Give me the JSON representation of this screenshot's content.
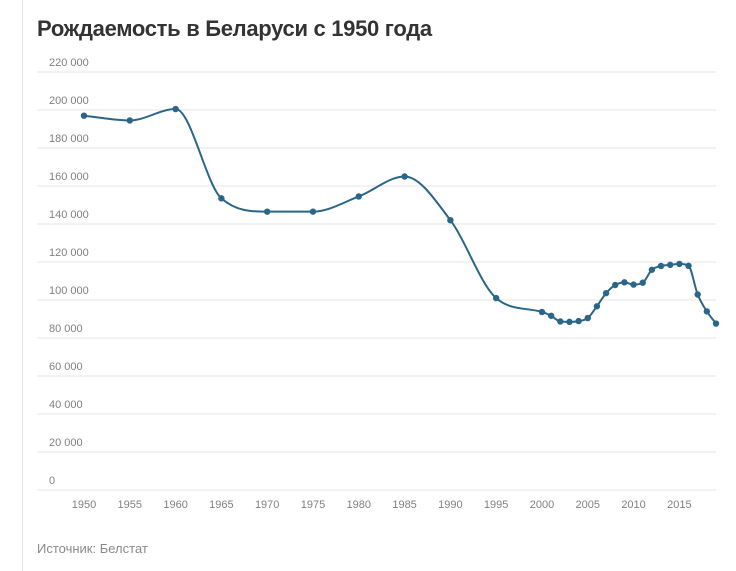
{
  "header": {
    "title": "Рождаемость в Беларуси с 1950 года"
  },
  "footer": {
    "source": "Источник: Белстат"
  },
  "chart_data": {
    "type": "line",
    "title": "Рождаемость в Беларуси с 1950 года",
    "xlabel": "",
    "ylabel": "",
    "xlim": [
      1950,
      2019
    ],
    "ylim": [
      0,
      220000
    ],
    "grid": true,
    "legend": "none",
    "line_color": "#2a6688",
    "grid_color": "#e6e6e6",
    "x_ticks": [
      1950,
      1955,
      1960,
      1965,
      1970,
      1975,
      1980,
      1985,
      1990,
      1995,
      2000,
      2005,
      2010,
      2015
    ],
    "y_ticks": [
      0,
      20000,
      40000,
      60000,
      80000,
      100000,
      120000,
      140000,
      160000,
      180000,
      200000,
      220000
    ],
    "x_tick_labels": [
      "1950",
      "1955",
      "1960",
      "1965",
      "1970",
      "1975",
      "1980",
      "1985",
      "1990",
      "1995",
      "2000",
      "2005",
      "2010",
      "2015"
    ],
    "y_tick_labels": [
      "0",
      "20 000",
      "40 000",
      "60 000",
      "80 000",
      "100 000",
      "120 000",
      "140 000",
      "160 000",
      "180 000",
      "200 000",
      "220 000"
    ],
    "series": [
      {
        "x": [
          1950,
          1955,
          1960,
          1965,
          1970,
          1975,
          1980,
          1985,
          1990,
          1995,
          2000,
          2001,
          2002,
          2003,
          2004,
          2005,
          2006,
          2007,
          2008,
          2009,
          2010,
          2011,
          2012,
          2013,
          2014,
          2015,
          2016,
          2017,
          2018,
          2019
        ],
        "values": [
          197000,
          194500,
          200500,
          153500,
          146500,
          146500,
          154500,
          165000,
          142000,
          101000,
          93700,
          91700,
          88700,
          88500,
          88900,
          90500,
          96700,
          103600,
          107900,
          109300,
          108100,
          109100,
          115900,
          117900,
          118500,
          119000,
          118000,
          102900,
          94000,
          87600
        ]
      }
    ]
  }
}
